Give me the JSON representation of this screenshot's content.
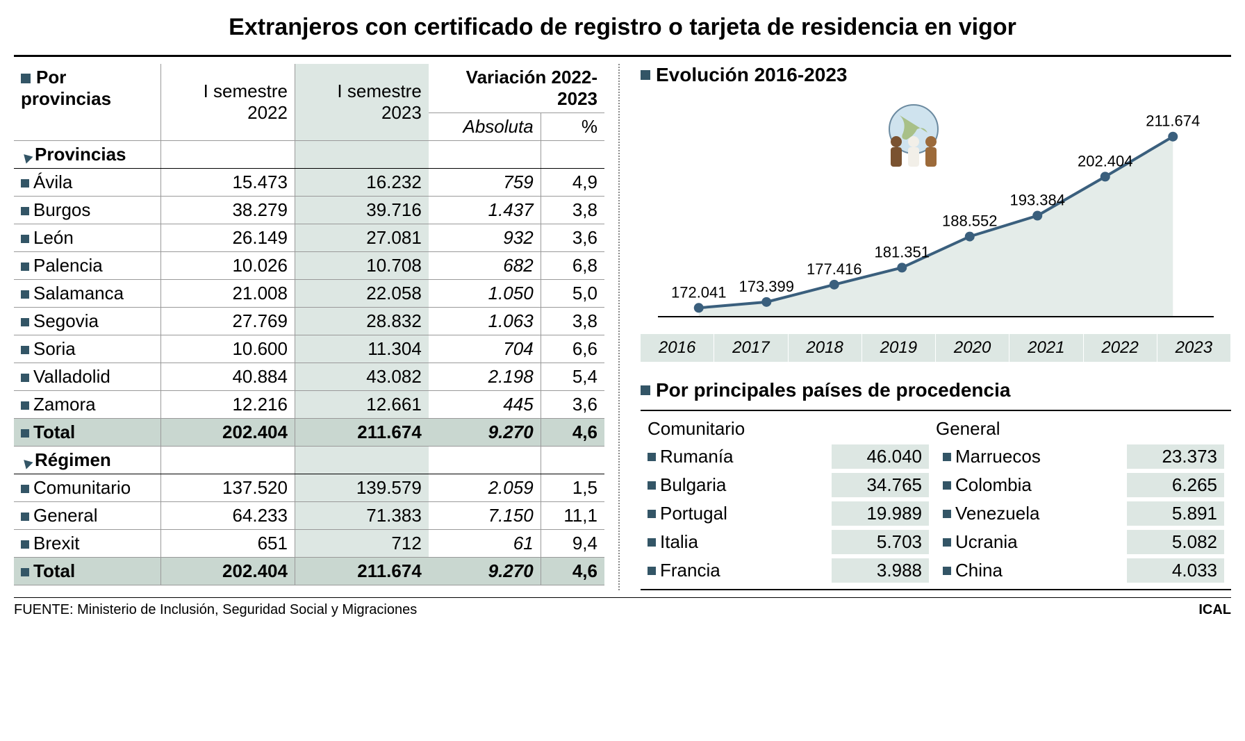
{
  "title": "Extranjeros con certificado de registro o tarjeta de residencia en vigor",
  "table": {
    "header": {
      "section": "Por provincias",
      "col1": "I semestre 2022",
      "col2": "I semestre 2023",
      "varGroup": "Variación 2022-2023",
      "varAbs": "Absoluta",
      "varPct": "%"
    },
    "subProvincias": "Provincias",
    "provincias": [
      {
        "name": "Ávila",
        "v22": "15.473",
        "v23": "16.232",
        "abs": "759",
        "pct": "4,9"
      },
      {
        "name": "Burgos",
        "v22": "38.279",
        "v23": "39.716",
        "abs": "1.437",
        "pct": "3,8"
      },
      {
        "name": "León",
        "v22": "26.149",
        "v23": "27.081",
        "abs": "932",
        "pct": "3,6"
      },
      {
        "name": "Palencia",
        "v22": "10.026",
        "v23": "10.708",
        "abs": "682",
        "pct": "6,8"
      },
      {
        "name": "Salamanca",
        "v22": "21.008",
        "v23": "22.058",
        "abs": "1.050",
        "pct": "5,0"
      },
      {
        "name": "Segovia",
        "v22": "27.769",
        "v23": "28.832",
        "abs": "1.063",
        "pct": "3,8"
      },
      {
        "name": "Soria",
        "v22": "10.600",
        "v23": "11.304",
        "abs": "704",
        "pct": "6,6"
      },
      {
        "name": "Valladolid",
        "v22": "40.884",
        "v23": "43.082",
        "abs": "2.198",
        "pct": "5,4"
      },
      {
        "name": "Zamora",
        "v22": "12.216",
        "v23": "12.661",
        "abs": "445",
        "pct": "3,6"
      }
    ],
    "totalProv": {
      "name": "Total",
      "v22": "202.404",
      "v23": "211.674",
      "abs": "9.270",
      "pct": "4,6"
    },
    "subRegimen": "Régimen",
    "regimen": [
      {
        "name": "Comunitario",
        "v22": "137.520",
        "v23": "139.579",
        "abs": "2.059",
        "pct": "1,5"
      },
      {
        "name": "General",
        "v22": "64.233",
        "v23": "71.383",
        "abs": "7.150",
        "pct": "11,1"
      },
      {
        "name": "Brexit",
        "v22": "651",
        "v23": "712",
        "abs": "61",
        "pct": "9,4"
      }
    ],
    "totalReg": {
      "name": "Total",
      "v22": "202.404",
      "v23": "211.674",
      "abs": "9.270",
      "pct": "4,6"
    }
  },
  "chart": {
    "title": "Evolución 2016-2023",
    "years": [
      "2016",
      "2017",
      "2018",
      "2019",
      "2020",
      "2021",
      "2022",
      "2023"
    ],
    "values": [
      172041,
      173399,
      177416,
      181351,
      188552,
      193384,
      202404,
      211674
    ],
    "labels": [
      "172.041",
      "173.399",
      "177.416",
      "181.351",
      "188.552",
      "193.384",
      "202.404",
      "211.674"
    ],
    "lineColor": "#3a5f7d",
    "areaColor": "#dde7e3",
    "pointColor": "#3a5f7d",
    "gridBg": "#ffffff"
  },
  "countries": {
    "title": "Por principales países de procedencia",
    "comunitarioLabel": "Comunitario",
    "generalLabel": "General",
    "comunitario": [
      {
        "name": "Rumanía",
        "val": "46.040"
      },
      {
        "name": "Bulgaria",
        "val": "34.765"
      },
      {
        "name": "Portugal",
        "val": "19.989"
      },
      {
        "name": "Italia",
        "val": "5.703"
      },
      {
        "name": "Francia",
        "val": "3.988"
      }
    ],
    "general": [
      {
        "name": "Marruecos",
        "val": "23.373"
      },
      {
        "name": "Colombia",
        "val": "6.265"
      },
      {
        "name": "Venezuela",
        "val": "5.891"
      },
      {
        "name": "Ucrania",
        "val": "5.082"
      },
      {
        "name": "China",
        "val": "4.033"
      }
    ]
  },
  "footer": {
    "source": "FUENTE: Ministerio de Inclusión, Seguridad Social y Migraciones",
    "credit": "ICAL"
  },
  "colors": {
    "bullet": "#335566",
    "highlight": "#dde7e3",
    "totalBg": "#c9d7d0"
  }
}
